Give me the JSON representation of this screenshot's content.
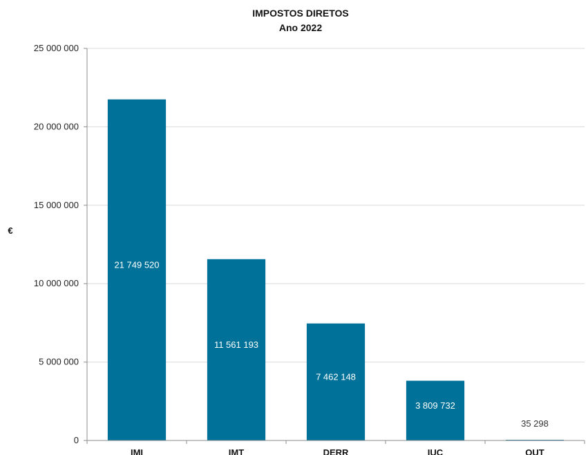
{
  "chart_data": {
    "type": "bar",
    "title": "IMPOSTOS DIRETOS",
    "subtitle": "Ano 2022",
    "ylabel": "€",
    "xlabel": "",
    "categories": [
      "IMI",
      "IMT",
      "DERR",
      "IUC",
      "OUT"
    ],
    "values": [
      21749520,
      11561193,
      7462148,
      3809732,
      35298
    ],
    "value_labels": [
      "21 749 520",
      "11 561 193",
      "7 462 148",
      "3 809 732",
      "35 298"
    ],
    "ylim": [
      0,
      25000000
    ],
    "yticks": [
      0,
      5000000,
      10000000,
      15000000,
      20000000,
      25000000
    ],
    "ytick_labels": [
      "0",
      "5 000 000",
      "10 000 000",
      "15 000 000",
      "20 000 000",
      "25 000 000"
    ],
    "grid": true,
    "legend": "none",
    "colors": {
      "bar": "#00729a",
      "grid": "#d9d9d9",
      "axis": "#8c8c8c",
      "label_inside": "#ffffff",
      "label_outside": "#333333"
    }
  }
}
